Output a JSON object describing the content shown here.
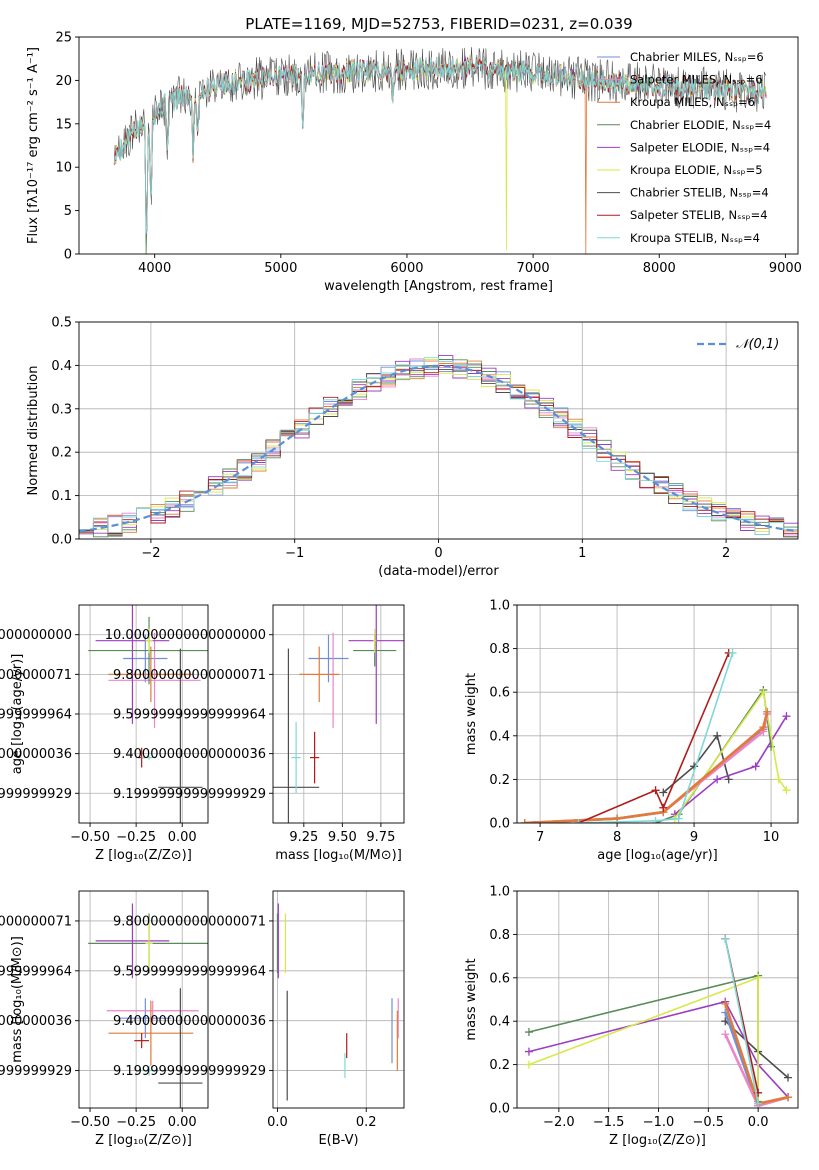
{
  "figure": {
    "title": "PLATE=1169, MJD=52753, FIBERID=0231, z=0.039",
    "palette": [
      "#6f8fd8",
      "#ea85c8",
      "#e07b39",
      "#5a8a5a",
      "#9b3ec0",
      "#d7e84a",
      "#4d4d4d",
      "#b01c1c",
      "#7fd8d8"
    ]
  },
  "chart_data": [
    {
      "id": "spectrum",
      "type": "line",
      "title": "PLATE=1169, MJD=52753, FIBERID=0231, z=0.039",
      "xlabel": "wavelength [Angstrom, rest frame]",
      "ylabel": "Flux [fλ10⁻¹⁷ erg cm⁻² s⁻¹ A⁻¹]",
      "xlim": [
        3400,
        9100
      ],
      "ylim": [
        0,
        25
      ],
      "xticks": [
        4000,
        5000,
        6000,
        7000,
        8000,
        9000
      ],
      "yticks": [
        0,
        5,
        10,
        15,
        20,
        25
      ],
      "grid": false,
      "legend_position": "top-right",
      "series": [
        {
          "name": "Chabrier MILES, Nₛₛₚ=6"
        },
        {
          "name": "Salpeter MILES, Nₛₛₚ=6"
        },
        {
          "name": "Kroupa MILES, Nₛₛₚ=6"
        },
        {
          "name": "Chabrier ELODIE, Nₛₛₚ=4"
        },
        {
          "name": "Salpeter ELODIE, Nₛₛₚ=4"
        },
        {
          "name": "Kroupa ELODIE, Nₛₛₚ=5"
        },
        {
          "name": "Chabrier STELIB, Nₛₛₚ=4"
        },
        {
          "name": "Salpeter STELIB, Nₛₛₚ=4"
        },
        {
          "name": "Kroupa STELIB, Nₛₛₚ=4"
        }
      ],
      "continuum": {
        "x": [
          3680,
          3800,
          3950,
          4100,
          4300,
          4500,
          4700,
          5000,
          5300,
          5600,
          6000,
          6300,
          6600,
          6900,
          7200,
          7500,
          7800,
          8100,
          8400,
          8850
        ],
        "y": [
          11,
          13.5,
          15.5,
          17.5,
          18.5,
          19.5,
          20,
          20.5,
          20.8,
          21,
          21.2,
          21.4,
          21.3,
          21,
          20.5,
          20,
          19.7,
          19.3,
          19,
          18.5
        ]
      },
      "absorption_features": [
        {
          "x": 3935,
          "depth": 14
        },
        {
          "x": 3970,
          "depth": 10
        },
        {
          "x": 4102,
          "depth": 5
        },
        {
          "x": 4305,
          "depth": 7
        },
        {
          "x": 4340,
          "depth": 5
        },
        {
          "x": 5175,
          "depth": 6
        },
        {
          "x": 5890,
          "depth": 3
        }
      ],
      "dropouts": [
        {
          "x": 3930,
          "to": 0,
          "series": 3
        },
        {
          "x": 6790,
          "to": 0,
          "series": 5
        },
        {
          "x": 7420,
          "to": 0,
          "series": 2
        }
      ]
    },
    {
      "id": "residuals",
      "type": "area",
      "xlabel": "(data-model)/error",
      "ylabel": "Normed distribution",
      "xlim": [
        -2.5,
        2.5
      ],
      "ylim": [
        0,
        0.5
      ],
      "xticks": [
        -2,
        -1,
        0,
        1,
        2
      ],
      "yticks": [
        0,
        0.1,
        0.2,
        0.3,
        0.4,
        0.5
      ],
      "grid": true,
      "legend_position": "top-right",
      "reference_curve": {
        "name": "𝒩(0,1)",
        "mean": 0,
        "sigma": 1
      },
      "bin_width": 0.1
    },
    {
      "id": "age-vs-Z",
      "type": "scatter",
      "xlabel": "Z [log₁₀(Z/Z⊙)]",
      "ylabel": "age  [log₁₀(age/yr)]",
      "xlim": [
        -0.56,
        0.14
      ],
      "ylim": [
        9.05,
        10.15
      ],
      "xticks": [
        -0.5,
        -0.25,
        0.0
      ],
      "yticks": [
        9.2,
        9.4,
        9.6,
        9.8,
        10.0
      ],
      "grid": true,
      "points": [
        {
          "series": 0,
          "x": -0.2,
          "xerr": 0.12,
          "y": 9.88,
          "yerr": 0.12
        },
        {
          "series": 1,
          "x": -0.15,
          "xerr": 0.25,
          "y": 9.77,
          "yerr": 0.24
        },
        {
          "series": 2,
          "x": -0.17,
          "xerr": 0.23,
          "y": 9.8,
          "yerr": 0.14
        },
        {
          "series": 3,
          "x": -0.18,
          "xerr": 0.33,
          "y": 9.92,
          "yerr": 0.17
        },
        {
          "series": 4,
          "x": -0.27,
          "xerr": 0.2,
          "y": 9.97,
          "yerr": 0.42
        },
        {
          "series": 5,
          "x": -0.18,
          "xerr": 0.02,
          "y": 9.97,
          "yerr": 0.06
        },
        {
          "series": 6,
          "x": -0.01,
          "xerr": 0.12,
          "y": 9.23,
          "yerr": 0.7
        },
        {
          "series": 7,
          "x": -0.22,
          "xerr": 0.02,
          "y": 9.38,
          "yerr": 0.05
        },
        {
          "series": 8,
          "x": -0.18,
          "xerr": 0.04,
          "y": 9.38,
          "yerr": 0.01
        }
      ]
    },
    {
      "id": "age-vs-mass",
      "type": "scatter",
      "xlabel": "mass [log₁₀(M/M⊙)]",
      "ylabel": "",
      "xlim": [
        9.05,
        9.9
      ],
      "ylim": [
        9.05,
        10.15
      ],
      "xticks": [
        9.25,
        9.5,
        9.75
      ],
      "yticks": [
        9.2,
        9.4,
        9.6,
        9.8,
        10.0
      ],
      "grid": true,
      "points": [
        {
          "series": 0,
          "x": 9.41,
          "xerr": 0.13,
          "y": 9.88,
          "yerr": 0.12
        },
        {
          "series": 1,
          "x": 9.44,
          "xerr": 0.0,
          "y": 9.77,
          "yerr": 0.24
        },
        {
          "series": 2,
          "x": 9.35,
          "xerr": 0.13,
          "y": 9.8,
          "yerr": 0.14
        },
        {
          "series": 3,
          "x": 9.71,
          "xerr": 0.14,
          "y": 9.92,
          "yerr": 0.08
        },
        {
          "series": 4,
          "x": 9.72,
          "xerr": 0.18,
          "y": 9.97,
          "yerr": 0.42
        },
        {
          "series": 5,
          "x": 9.71,
          "xerr": 0.01,
          "y": 9.97,
          "yerr": 0.06
        },
        {
          "series": 6,
          "x": 9.15,
          "xerr": 0.2,
          "y": 9.23,
          "yerr": 0.7
        },
        {
          "series": 7,
          "x": 9.32,
          "xerr": 0.03,
          "y": 9.38,
          "yerr": 0.13
        },
        {
          "series": 8,
          "x": 9.2,
          "xerr": 0.03,
          "y": 9.38,
          "yerr": 0.18
        }
      ]
    },
    {
      "id": "massweight-vs-age",
      "type": "line",
      "xlabel": "age  [log₁₀(age/yr)]",
      "ylabel": "mass weight",
      "xlim": [
        6.7,
        10.35
      ],
      "ylim": [
        0,
        1
      ],
      "xticks": [
        7,
        8,
        9,
        10
      ],
      "yticks": [
        0.0,
        0.2,
        0.4,
        0.6,
        0.8,
        1.0
      ],
      "grid": true,
      "series": [
        {
          "series": 0,
          "x": [
            6.8,
            8.0,
            8.6,
            9.9,
            9.95
          ],
          "y": [
            0.0,
            0.02,
            0.05,
            0.43,
            0.5
          ]
        },
        {
          "series": 1,
          "x": [
            6.8,
            8.0,
            8.6,
            9.9,
            9.95
          ],
          "y": [
            0.0,
            0.02,
            0.05,
            0.42,
            0.5
          ]
        },
        {
          "series": 2,
          "x": [
            6.8,
            8.0,
            8.6,
            9.9,
            9.95
          ],
          "y": [
            0.0,
            0.02,
            0.05,
            0.44,
            0.51
          ]
        },
        {
          "series": 3,
          "x": [
            8.5,
            8.8,
            9.9,
            10.0
          ],
          "y": [
            0.0,
            0.04,
            0.61,
            0.35
          ]
        },
        {
          "series": 4,
          "x": [
            8.75,
            9.3,
            9.8,
            10.2
          ],
          "y": [
            0.04,
            0.2,
            0.26,
            0.49
          ]
        },
        {
          "series": 5,
          "x": [
            8.75,
            9.9,
            10.1,
            10.2
          ],
          "y": [
            0.02,
            0.6,
            0.2,
            0.15
          ]
        },
        {
          "series": 6,
          "x": [
            8.6,
            9.0,
            9.3,
            9.45
          ],
          "y": [
            0.14,
            0.26,
            0.4,
            0.2
          ]
        },
        {
          "series": 7,
          "x": [
            7.5,
            8.5,
            8.6,
            9.45
          ],
          "y": [
            0.0,
            0.15,
            0.07,
            0.78
          ]
        },
        {
          "series": 8,
          "x": [
            7.5,
            8.5,
            8.8,
            9.5
          ],
          "y": [
            0.0,
            0.01,
            0.02,
            0.78
          ]
        }
      ]
    },
    {
      "id": "mass-vs-Z",
      "type": "scatter",
      "xlabel": "Z [log₁₀(Z/Z⊙)]",
      "ylabel": "mass [log₁₀(M/M⊙)]",
      "xlim": [
        -0.56,
        0.14
      ],
      "ylim": [
        9.05,
        9.92
      ],
      "xticks": [
        -0.5,
        -0.25,
        0.0
      ],
      "yticks": [
        9.2,
        9.4,
        9.6,
        9.8
      ],
      "grid": true,
      "points": [
        {
          "series": 0,
          "x": -0.2,
          "xerr": 0.14,
          "y": 9.41,
          "yerr": 0.08
        },
        {
          "series": 1,
          "x": -0.16,
          "xerr": 0.25,
          "y": 9.44,
          "yerr": 0.04
        },
        {
          "series": 2,
          "x": -0.17,
          "xerr": 0.23,
          "y": 9.35,
          "yerr": 0.13
        },
        {
          "series": 3,
          "x": -0.18,
          "xerr": 0.33,
          "y": 9.71,
          "yerr": 0.12
        },
        {
          "series": 4,
          "x": -0.27,
          "xerr": 0.2,
          "y": 9.72,
          "yerr": 0.15
        },
        {
          "series": 5,
          "x": -0.18,
          "xerr": 0.02,
          "y": 9.71,
          "yerr": 0.1
        },
        {
          "series": 6,
          "x": -0.01,
          "xerr": 0.12,
          "y": 9.15,
          "yerr": 0.38
        },
        {
          "series": 7,
          "x": -0.22,
          "xerr": 0.04,
          "y": 9.32,
          "yerr": 0.03
        },
        {
          "series": 8,
          "x": -0.18,
          "xerr": 0.04,
          "y": 9.2,
          "yerr": 0.02
        }
      ]
    },
    {
      "id": "mass-vs-EBV",
      "type": "scatter",
      "xlabel": "E(B-V)",
      "ylabel": "",
      "xlim": [
        -0.01,
        0.285
      ],
      "ylim": [
        9.05,
        9.92
      ],
      "xticks": [
        0.0,
        0.2
      ],
      "yticks": [
        9.2,
        9.4,
        9.6,
        9.8
      ],
      "grid": true,
      "points": [
        {
          "series": 0,
          "x": 0.258,
          "xerr": 0.0,
          "y": 9.36,
          "yerr": 0.13
        },
        {
          "series": 1,
          "x": 0.272,
          "xerr": 0.0,
          "y": 9.41,
          "yerr": 0.08
        },
        {
          "series": 2,
          "x": 0.27,
          "xerr": 0.0,
          "y": 9.32,
          "yerr": 0.12
        },
        {
          "series": 3,
          "x": 0.0,
          "xerr": 0.0,
          "y": 9.71,
          "yerr": 0.12
        },
        {
          "series": 4,
          "x": 0.002,
          "xerr": 0.0,
          "y": 9.72,
          "yerr": 0.15
        },
        {
          "series": 5,
          "x": 0.018,
          "xerr": 0.0,
          "y": 9.71,
          "yerr": 0.12
        },
        {
          "series": 6,
          "x": 0.022,
          "xerr": 0.0,
          "y": 9.3,
          "yerr": 0.22
        },
        {
          "series": 7,
          "x": 0.156,
          "xerr": 0.0,
          "y": 9.3,
          "yerr": 0.05
        },
        {
          "series": 8,
          "x": 0.152,
          "xerr": 0.0,
          "y": 9.22,
          "yerr": 0.05
        }
      ]
    },
    {
      "id": "massweight-vs-Z",
      "type": "line",
      "xlabel": "Z [log₁₀(Z/Z⊙)]",
      "ylabel": "mass weight",
      "xlim": [
        -2.42,
        0.4
      ],
      "ylim": [
        0,
        1
      ],
      "xticks": [
        -2.0,
        -1.5,
        -1.0,
        -0.5,
        0.0
      ],
      "yticks": [
        0.0,
        0.2,
        0.4,
        0.6,
        0.8,
        1.0
      ],
      "grid": true,
      "series": [
        {
          "series": 0,
          "x": [
            -0.33,
            0.0,
            0.3
          ],
          "y": [
            0.44,
            0.01,
            0.05
          ]
        },
        {
          "series": 1,
          "x": [
            -0.33,
            0.0,
            0.3
          ],
          "y": [
            0.34,
            0.01,
            0.05
          ]
        },
        {
          "series": 2,
          "x": [
            -0.33,
            0.0,
            0.3
          ],
          "y": [
            0.48,
            0.02,
            0.05
          ]
        },
        {
          "series": 3,
          "x": [
            -2.3,
            0.0,
            0.0
          ],
          "y": [
            0.35,
            0.61,
            0.03
          ]
        },
        {
          "series": 4,
          "x": [
            -2.3,
            -0.33,
            0.0,
            0.3
          ],
          "y": [
            0.26,
            0.49,
            0.2,
            0.05
          ]
        },
        {
          "series": 5,
          "x": [
            -2.3,
            0.0,
            0.0
          ],
          "y": [
            0.2,
            0.6,
            0.02
          ]
        },
        {
          "series": 6,
          "x": [
            -0.33,
            0.0,
            0.3
          ],
          "y": [
            0.4,
            0.26,
            0.14
          ]
        },
        {
          "series": 7,
          "x": [
            -0.33,
            0.0
          ],
          "y": [
            0.78,
            0.07
          ]
        },
        {
          "series": 8,
          "x": [
            -0.33,
            0.0
          ],
          "y": [
            0.78,
            0.02
          ]
        }
      ]
    }
  ]
}
